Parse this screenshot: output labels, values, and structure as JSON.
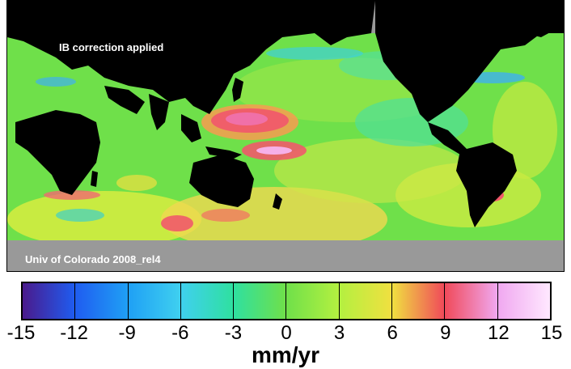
{
  "map": {
    "label_top": "IB correction applied",
    "label_bottom": "Univ of Colorado 2008_rel4"
  },
  "legend": {
    "unit": "mm/yr",
    "ticks": [
      "-15",
      "-12",
      "-9",
      "-6",
      "-3",
      "0",
      "3",
      "6",
      "9",
      "12",
      "15"
    ],
    "colors": [
      "#4a1a8c",
      "#1f5cf0",
      "#1fa0f5",
      "#3fd0ef",
      "#2fe0a0",
      "#6fe04a",
      "#b4f040",
      "#f0e040",
      "#f04a5a",
      "#f0a8f0",
      "#ffe8ff"
    ]
  },
  "colors": {
    "land": "#000000",
    "ice": "#999999",
    "ocean_base": "#6fe04a"
  }
}
